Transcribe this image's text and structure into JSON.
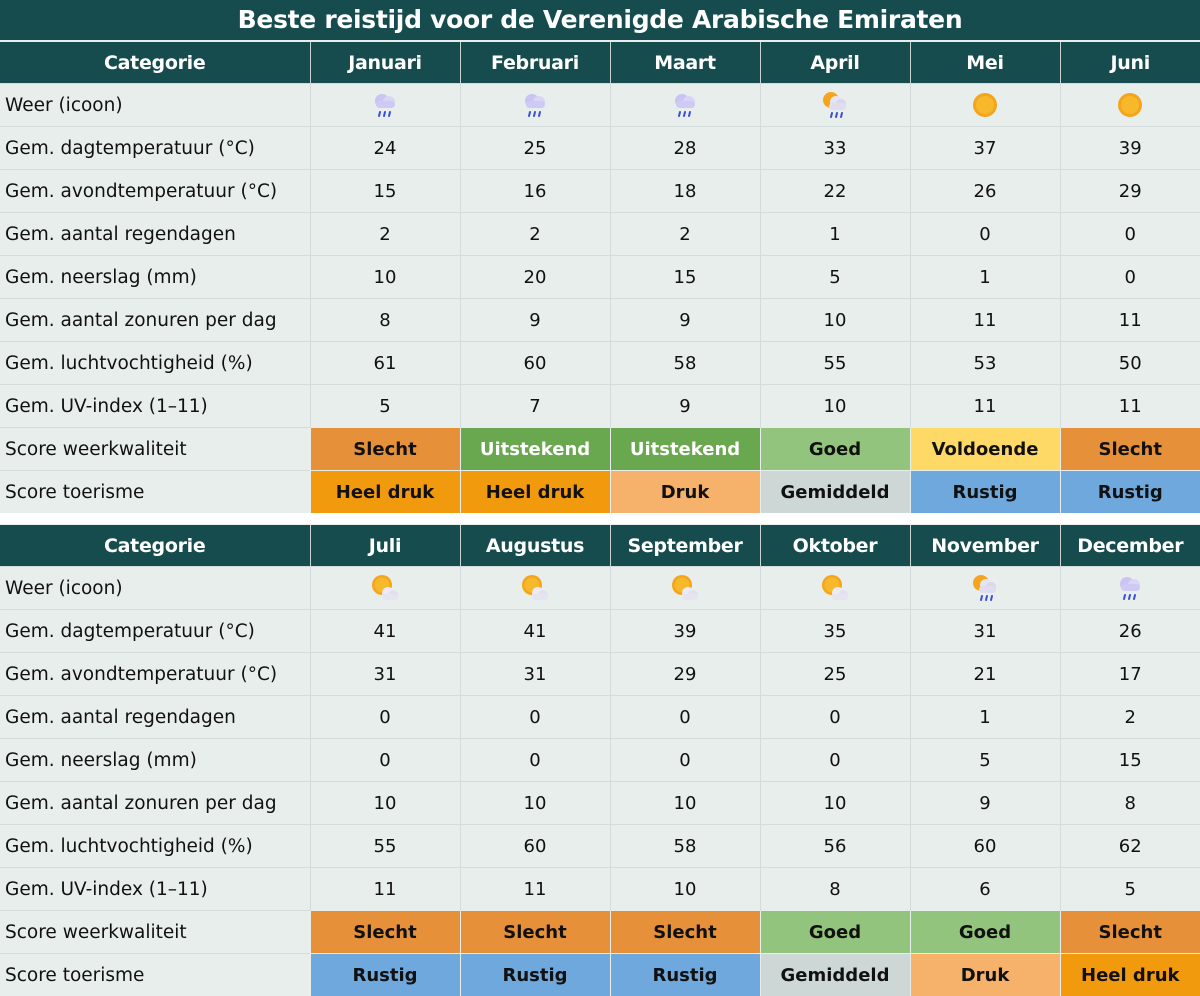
{
  "title": "Beste reistijd voor de Verenigde Arabische Emiraten",
  "row_labels": [
    "Weer (icoon)",
    "Gem. dagtemperatuur (°C)",
    "Gem. avondtemperatuur (°C)",
    "Gem. aantal regendagen",
    "Gem. neerslag (mm)",
    "Gem. aantal zonuren per dag",
    "Gem. luchtvochtigheid (%)",
    "Gem. UV-index (1–11)",
    "Score weerkwaliteit",
    "Score toerisme"
  ],
  "score_colors": {
    "Slecht": {
      "bg": "#e6913a",
      "fg": "#111111"
    },
    "Uitstekend": {
      "bg": "#6aa84f",
      "fg": "#ffffff"
    },
    "Goed": {
      "bg": "#93c47d",
      "fg": "#111111"
    },
    "Voldoende": {
      "bg": "#ffd966",
      "fg": "#111111"
    },
    "Heel druk": {
      "bg": "#f29a0e",
      "fg": "#111111"
    },
    "Druk": {
      "bg": "#f6b26b",
      "fg": "#111111"
    },
    "Gemiddeld": {
      "bg": "#cdd8d6",
      "fg": "#111111"
    },
    "Rustig": {
      "bg": "#6fa8dc",
      "fg": "#111111"
    }
  },
  "tables": [
    {
      "header": "Categorie",
      "months": [
        {
          "name": "Januari",
          "icon": "rain-cloud-icon",
          "day": "24",
          "night": "15",
          "rain_days": "2",
          "precip": "10",
          "sun": "8",
          "humidity": "61",
          "uv": "5",
          "weather": "Slecht",
          "tourism": "Heel druk"
        },
        {
          "name": "Februari",
          "icon": "rain-cloud-icon",
          "day": "25",
          "night": "16",
          "rain_days": "2",
          "precip": "20",
          "sun": "9",
          "humidity": "60",
          "uv": "7",
          "weather": "Uitstekend",
          "tourism": "Heel druk"
        },
        {
          "name": "Maart",
          "icon": "rain-cloud-icon",
          "day": "28",
          "night": "18",
          "rain_days": "2",
          "precip": "15",
          "sun": "9",
          "humidity": "58",
          "uv": "9",
          "weather": "Uitstekend",
          "tourism": "Druk"
        },
        {
          "name": "April",
          "icon": "sun-rain-cloud-icon",
          "day": "33",
          "night": "22",
          "rain_days": "1",
          "precip": "5",
          "sun": "10",
          "humidity": "55",
          "uv": "10",
          "weather": "Goed",
          "tourism": "Gemiddeld"
        },
        {
          "name": "Mei",
          "icon": "sun-icon",
          "day": "37",
          "night": "26",
          "rain_days": "0",
          "precip": "1",
          "sun": "11",
          "humidity": "53",
          "uv": "11",
          "weather": "Voldoende",
          "tourism": "Rustig"
        },
        {
          "name": "Juni",
          "icon": "sun-icon",
          "day": "39",
          "night": "29",
          "rain_days": "0",
          "precip": "0",
          "sun": "11",
          "humidity": "50",
          "uv": "11",
          "weather": "Slecht",
          "tourism": "Rustig"
        }
      ]
    },
    {
      "header": "Categorie",
      "months": [
        {
          "name": "Juli",
          "icon": "sun-cloud-icon",
          "day": "41",
          "night": "31",
          "rain_days": "0",
          "precip": "0",
          "sun": "10",
          "humidity": "55",
          "uv": "11",
          "weather": "Slecht",
          "tourism": "Rustig"
        },
        {
          "name": "Augustus",
          "icon": "sun-cloud-icon",
          "day": "41",
          "night": "31",
          "rain_days": "0",
          "precip": "0",
          "sun": "10",
          "humidity": "60",
          "uv": "11",
          "weather": "Slecht",
          "tourism": "Rustig"
        },
        {
          "name": "September",
          "icon": "sun-cloud-icon",
          "day": "39",
          "night": "29",
          "rain_days": "0",
          "precip": "0",
          "sun": "10",
          "humidity": "58",
          "uv": "10",
          "weather": "Slecht",
          "tourism": "Rustig"
        },
        {
          "name": "Oktober",
          "icon": "sun-cloud-icon",
          "day": "35",
          "night": "25",
          "rain_days": "0",
          "precip": "0",
          "sun": "10",
          "humidity": "56",
          "uv": "8",
          "weather": "Goed",
          "tourism": "Gemiddeld"
        },
        {
          "name": "November",
          "icon": "sun-rain-cloud-icon",
          "day": "31",
          "night": "21",
          "rain_days": "1",
          "precip": "5",
          "sun": "9",
          "humidity": "60",
          "uv": "6",
          "weather": "Goed",
          "tourism": "Druk"
        },
        {
          "name": "December",
          "icon": "rain-cloud-icon",
          "day": "26",
          "night": "17",
          "rain_days": "2",
          "precip": "15",
          "sun": "8",
          "humidity": "62",
          "uv": "5",
          "weather": "Slecht",
          "tourism": "Heel druk"
        }
      ]
    }
  ]
}
